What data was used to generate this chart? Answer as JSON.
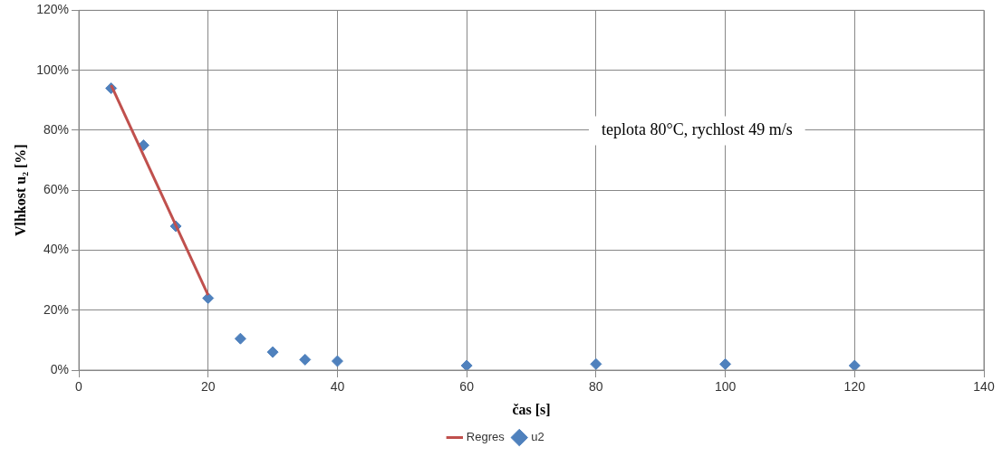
{
  "chart_data": {
    "type": "scatter",
    "xlabel": "čas [s]",
    "ylabel": "Vlhkost u₂ [%]",
    "annotations": [
      "teplota 80°C, rychlost 49 m/s"
    ],
    "xlim": [
      0,
      140
    ],
    "xticks": [
      0,
      20,
      40,
      60,
      80,
      100,
      120,
      140
    ],
    "ylim": [
      0,
      120
    ],
    "yticks": [
      {
        "value": 0,
        "label": "0%"
      },
      {
        "value": 20,
        "label": "20%"
      },
      {
        "value": 40,
        "label": "40%"
      },
      {
        "value": 60,
        "label": "60%"
      },
      {
        "value": 80,
        "label": "80%"
      },
      {
        "value": 100,
        "label": "100%"
      },
      {
        "value": 120,
        "label": "120%"
      }
    ],
    "grid": true,
    "legend": "bottom",
    "marker": "diamond",
    "series": [
      {
        "name": "u2",
        "color": "#4f81bd",
        "x": [
          5,
          10,
          15,
          20,
          25,
          30,
          35,
          40,
          60,
          80,
          100,
          120
        ],
        "values": [
          94,
          75,
          48,
          24,
          10.5,
          6,
          3.5,
          3,
          1.5,
          2,
          2,
          1.5
        ]
      },
      {
        "name": "Regres",
        "type": "line",
        "color": "#c0504d",
        "marker": "none",
        "x": [
          5,
          20
        ],
        "values": [
          95,
          25
        ]
      }
    ]
  }
}
